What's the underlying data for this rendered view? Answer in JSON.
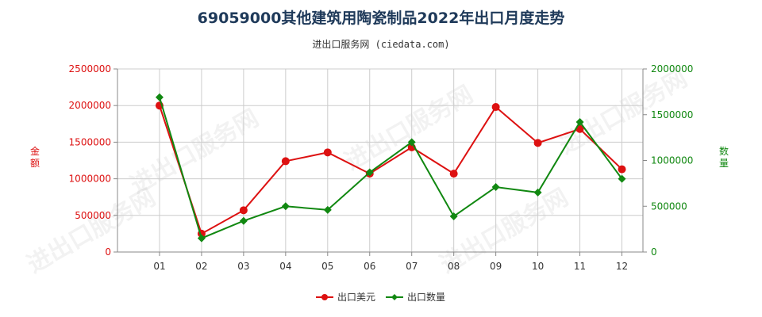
{
  "title": "69059000其他建筑用陶瓷制品2022年出口月度走势",
  "subtitle": "进出口服务网 (ciedata.com)",
  "watermark": "进出口服务网",
  "colors": {
    "amount": "#dd1111",
    "quantity": "#118811",
    "grid": "#cccccc",
    "axis": "#888888"
  },
  "chart_data": {
    "type": "line",
    "categories": [
      "01",
      "02",
      "03",
      "04",
      "05",
      "06",
      "07",
      "08",
      "09",
      "10",
      "11",
      "12"
    ],
    "left_axis": {
      "label": "金额",
      "range": [
        0,
        2500000
      ],
      "ticks": [
        "0",
        "500000",
        "1000000",
        "1500000",
        "2000000",
        "2500000"
      ]
    },
    "right_axis": {
      "label": "数量",
      "range": [
        0,
        2000000
      ],
      "ticks": [
        "0",
        "500000",
        "1000000",
        "1500000",
        "2000000"
      ]
    },
    "grid": true,
    "legend": "bottom",
    "series": [
      {
        "name": "出口美元",
        "axis": "left",
        "values": [
          2000000,
          250000,
          570000,
          1240000,
          1360000,
          1070000,
          1430000,
          1070000,
          1980000,
          1490000,
          1680000,
          1130000
        ]
      },
      {
        "name": "出口数量",
        "axis": "right",
        "values": [
          1690000,
          150000,
          340000,
          500000,
          460000,
          870000,
          1200000,
          390000,
          710000,
          650000,
          1420000,
          800000
        ]
      }
    ]
  }
}
